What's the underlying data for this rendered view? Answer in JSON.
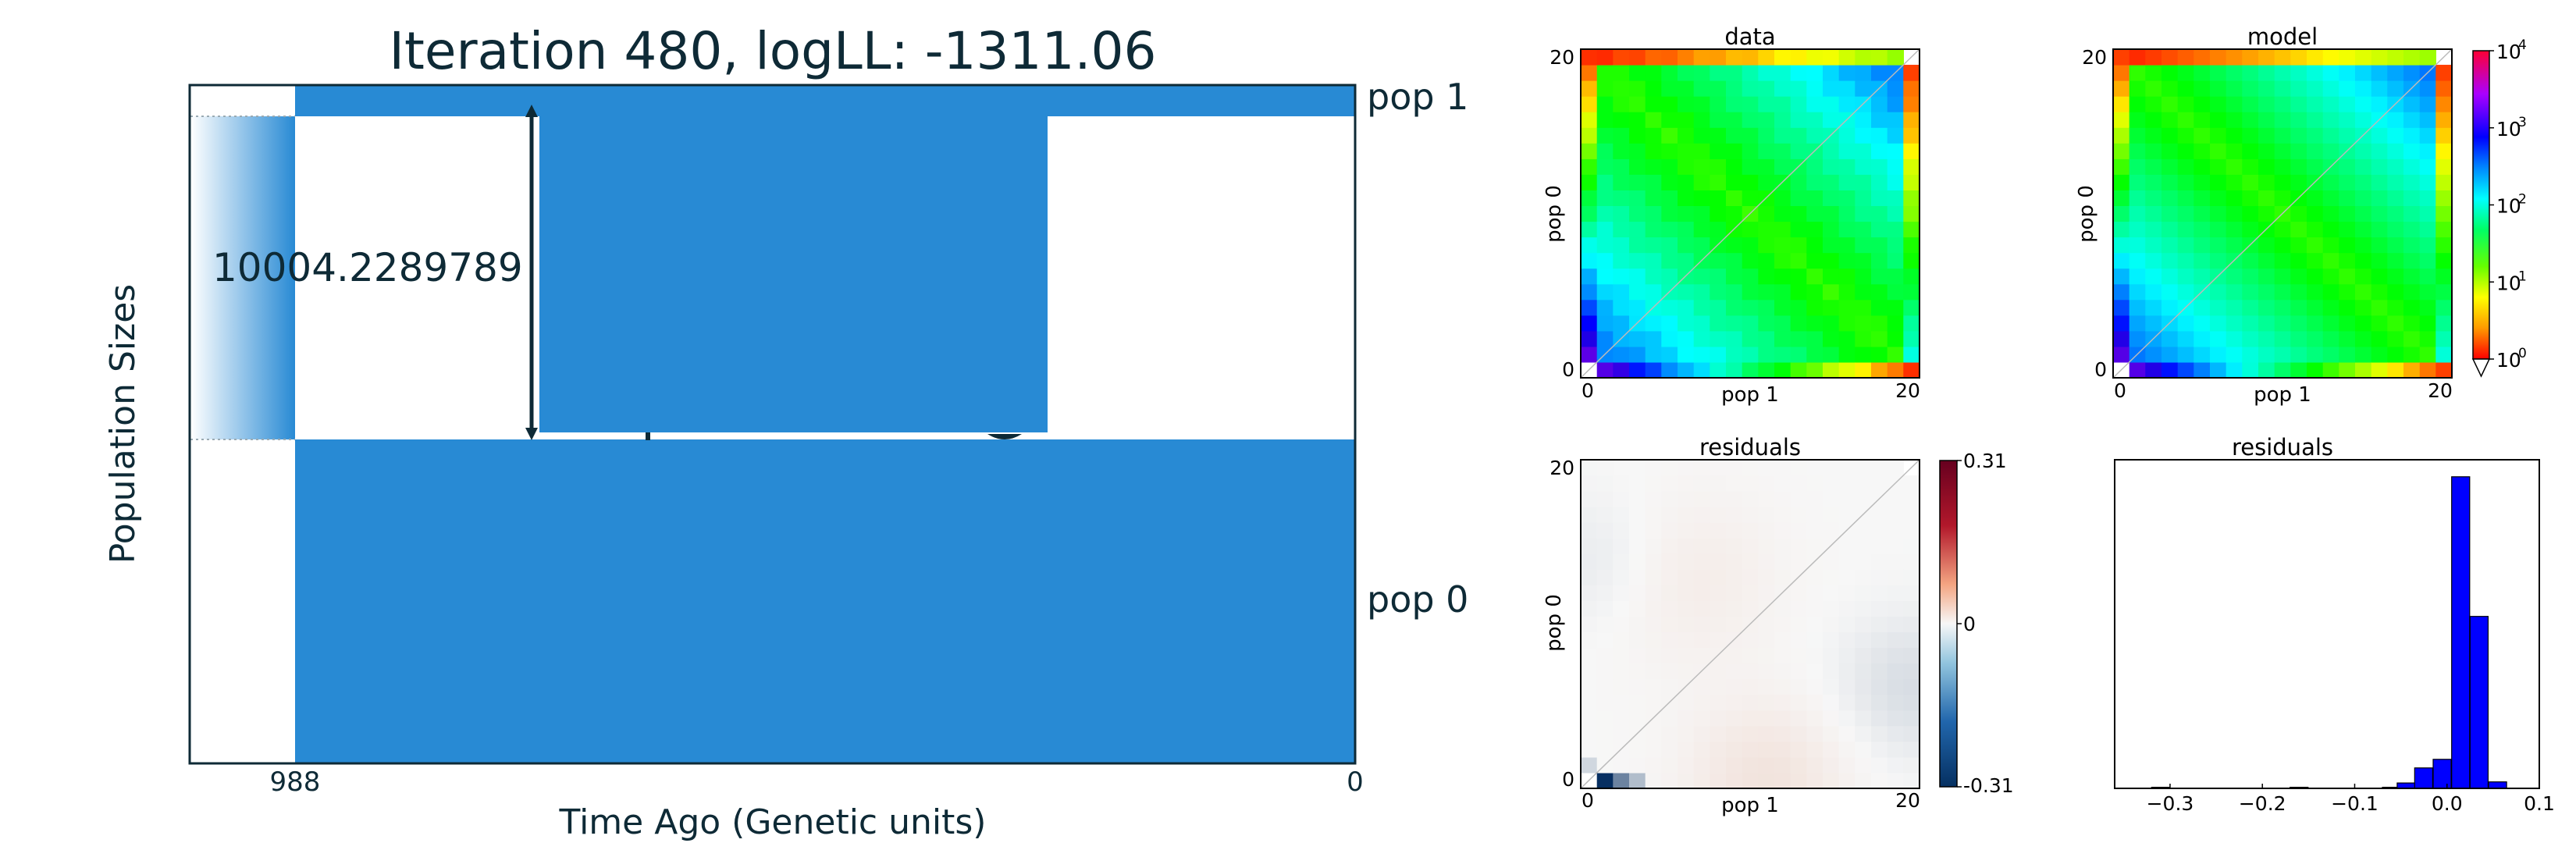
{
  "left_panel": {
    "title": "Iteration 480, logLL:   -1311.06",
    "ylabel": "Population Sizes",
    "xlabel": "Time Ago (Genetic units)",
    "x_ticks": [
      "988",
      "0"
    ],
    "pop_labels": [
      "pop 1",
      "pop 0"
    ],
    "size_annotation": "10004.2289789",
    "colors": {
      "population": "#288ad4",
      "axis": "#0e2a36",
      "arrow": "#0e2a36"
    }
  },
  "sfs_data": {
    "title": "data",
    "xlabel": "pop 1",
    "ylabel": "pop 0",
    "x_ticks": [
      "0",
      "20"
    ],
    "y_ticks": [
      "0",
      "20"
    ]
  },
  "sfs_model": {
    "title": "model",
    "xlabel": "pop 1",
    "ylabel": "pop 0",
    "x_ticks": [
      "0",
      "20"
    ],
    "y_ticks": [
      "0",
      "20"
    ]
  },
  "log_colorbar": {
    "ticks": [
      "10",
      "10",
      "10",
      "10",
      "10"
    ],
    "exponents": [
      "0",
      "1",
      "2",
      "3",
      "4"
    ]
  },
  "residual_map": {
    "title": "residuals",
    "xlabel": "pop 1",
    "ylabel": "pop 0",
    "x_ticks": [
      "0",
      "20"
    ],
    "y_ticks": [
      "0",
      "20"
    ],
    "colorbar_ticks": [
      "0.31",
      "0",
      "-0.31"
    ]
  },
  "chart_data": [
    {
      "type": "heatmap",
      "title": "data",
      "xlabel": "pop 1",
      "ylabel": "pop 0",
      "xlim": [
        0,
        20
      ],
      "ylim": [
        0,
        20
      ],
      "color_scale": "log",
      "colorbar_range": [
        1,
        10000
      ],
      "colormap": "hsv"
    },
    {
      "type": "heatmap",
      "title": "model",
      "xlabel": "pop 1",
      "ylabel": "pop 0",
      "xlim": [
        0,
        20
      ],
      "ylim": [
        0,
        20
      ],
      "color_scale": "log",
      "colorbar_range": [
        1,
        10000
      ],
      "colormap": "hsv"
    },
    {
      "type": "heatmap",
      "title": "residuals",
      "xlabel": "pop 1",
      "ylabel": "pop 0",
      "xlim": [
        0,
        20
      ],
      "ylim": [
        0,
        20
      ],
      "colorbar_range": [
        -0.31,
        0.31
      ],
      "colormap": "RdBu_r"
    },
    {
      "type": "bar",
      "title": "residuals",
      "x_ticks": [
        "−0.3",
        "−0.2",
        "−0.1",
        "0.0",
        "0.1"
      ],
      "xlim": [
        -0.36,
        0.1
      ],
      "bin_width": 0.0195,
      "bin_starts": [
        -0.32,
        -0.17,
        -0.07,
        -0.054,
        -0.035,
        -0.015,
        0.005,
        0.025,
        0.045
      ],
      "counts": [
        1,
        1,
        1,
        5,
        19,
        27,
        290,
        160,
        6
      ],
      "bar_color": "#0000ff"
    }
  ]
}
